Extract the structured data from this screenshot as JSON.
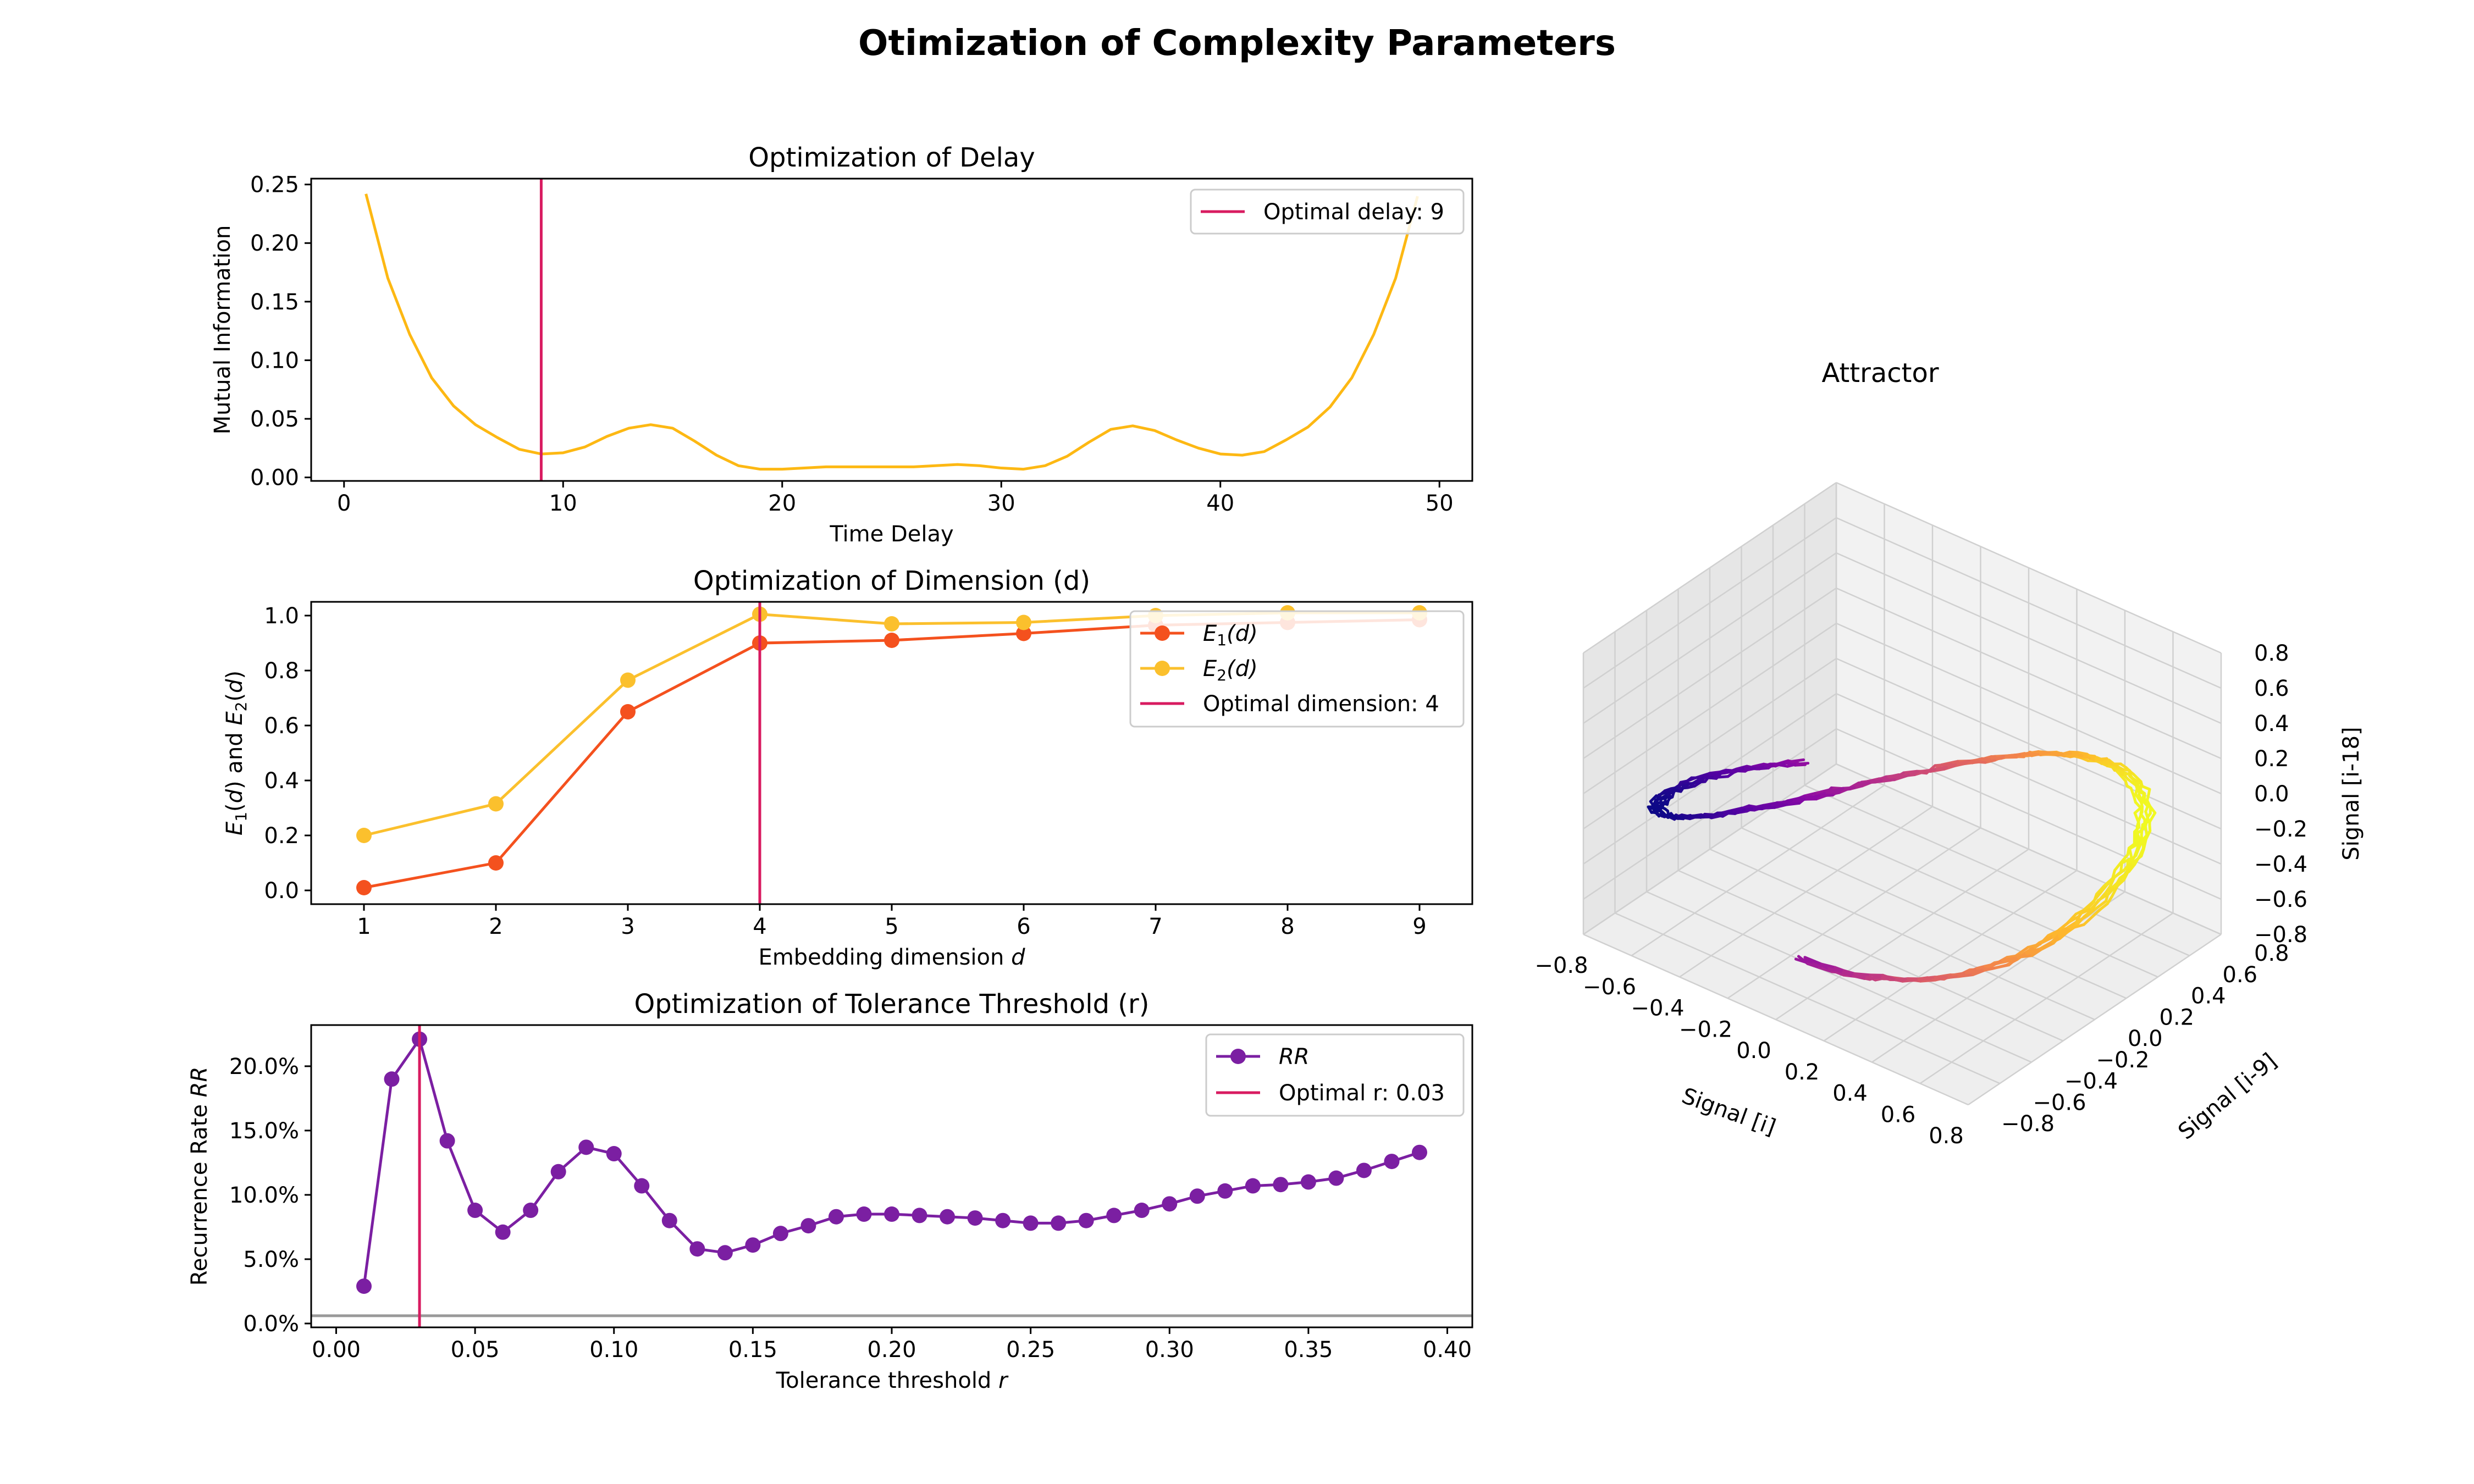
{
  "figure": {
    "title": "Otimization of Complexity Parameters"
  },
  "colors": {
    "delay_line": "#FDB813",
    "optimal_line": "#D81B60",
    "e1": "#F4511E",
    "e2": "#FBC02D",
    "rr": "#7B1FA2"
  },
  "chart_data": [
    {
      "type": "line",
      "title": "Optimization of Delay",
      "xlabel": "Time Delay",
      "ylabel": "Mutual Information",
      "xlim": [
        -1.5,
        51.5
      ],
      "ylim": [
        -0.003,
        0.255
      ],
      "xticks": [
        0,
        10,
        20,
        30,
        40,
        50
      ],
      "xtick_labels": [
        "0",
        "10",
        "20",
        "30",
        "40",
        "50"
      ],
      "yticks": [
        0.0,
        0.05,
        0.1,
        0.15,
        0.2,
        0.25
      ],
      "ytick_labels": [
        "0.00",
        "0.05",
        "0.10",
        "0.15",
        "0.20",
        "0.25"
      ],
      "series": [
        {
          "x": [
            1,
            2,
            3,
            4,
            5,
            6,
            7,
            8,
            9,
            10,
            11,
            12,
            13,
            14,
            15,
            16,
            17,
            18,
            19,
            20,
            21,
            22,
            23,
            24,
            25,
            26,
            27,
            28,
            29,
            30,
            31,
            32,
            33,
            34,
            35,
            36,
            37,
            38,
            39,
            40,
            41,
            42,
            43,
            44,
            45,
            46,
            47,
            48,
            49
          ],
          "values": [
            0.242,
            0.17,
            0.122,
            0.085,
            0.061,
            0.045,
            0.034,
            0.024,
            0.02,
            0.021,
            0.026,
            0.035,
            0.042,
            0.045,
            0.042,
            0.031,
            0.019,
            0.01,
            0.007,
            0.007,
            0.008,
            0.009,
            0.009,
            0.009,
            0.009,
            0.009,
            0.01,
            0.011,
            0.01,
            0.008,
            0.007,
            0.01,
            0.018,
            0.03,
            0.041,
            0.044,
            0.04,
            0.032,
            0.025,
            0.02,
            0.019,
            0.022,
            0.032,
            0.043,
            0.06,
            0.085,
            0.122,
            0.17,
            0.24
          ]
        }
      ],
      "optimal": {
        "x": 9,
        "legend": "Optimal delay: 9"
      }
    },
    {
      "type": "line",
      "title": "Optimization of Dimension (d)",
      "xlabel_prefix": "Embedding dimension ",
      "xlabel_var": "d",
      "ylabel": "E1(d) and E2(d)",
      "xlim": [
        0.6,
        9.4
      ],
      "ylim": [
        -0.05,
        1.05
      ],
      "xticks": [
        1,
        2,
        3,
        4,
        5,
        6,
        7,
        8,
        9
      ],
      "xtick_labels": [
        "1",
        "2",
        "3",
        "4",
        "5",
        "6",
        "7",
        "8",
        "9"
      ],
      "yticks": [
        0.0,
        0.2,
        0.4,
        0.6,
        0.8,
        1.0
      ],
      "ytick_labels": [
        "0.0",
        "0.2",
        "0.4",
        "0.6",
        "0.8",
        "1.0"
      ],
      "categories": [
        1,
        2,
        3,
        4,
        5,
        6,
        7,
        8,
        9
      ],
      "series": [
        {
          "name": "E1(d)",
          "values": [
            0.01,
            0.1,
            0.65,
            0.9,
            0.91,
            0.935,
            0.965,
            0.975,
            0.985
          ]
        },
        {
          "name": "E2(d)",
          "values": [
            0.2,
            0.315,
            0.765,
            1.005,
            0.97,
            0.975,
            1.0,
            1.01,
            1.01
          ]
        }
      ],
      "legend_names": [
        {
          "main": "E",
          "sub": "1",
          "tail": "(d)"
        },
        {
          "main": "E",
          "sub": "2",
          "tail": "(d)"
        }
      ],
      "optimal": {
        "x": 4,
        "legend": "Optimal dimension: 4"
      }
    },
    {
      "type": "line",
      "title": "Optimization of Tolerance Threshold (r)",
      "xlabel_prefix": "Tolerance threshold ",
      "xlabel_var": "r",
      "ylabel_prefix": "Recurrence Rate ",
      "ylabel_var": "RR",
      "xlim": [
        -0.009,
        0.409
      ],
      "ylim": [
        -0.003,
        0.232
      ],
      "xticks": [
        0.0,
        0.05,
        0.1,
        0.15,
        0.2,
        0.25,
        0.3,
        0.35,
        0.4
      ],
      "xtick_labels": [
        "0.00",
        "0.05",
        "0.10",
        "0.15",
        "0.20",
        "0.25",
        "0.30",
        "0.35",
        "0.40"
      ],
      "yticks": [
        0.0,
        0.05,
        0.1,
        0.15,
        0.2
      ],
      "ytick_labels": [
        "0.0%",
        "5.0%",
        "10.0%",
        "15.0%",
        "20.0%"
      ],
      "series": [
        {
          "name": "RR",
          "x": [
            0.01,
            0.02,
            0.03,
            0.04,
            0.05,
            0.06,
            0.07,
            0.08,
            0.09,
            0.1,
            0.11,
            0.12,
            0.13,
            0.14,
            0.15,
            0.16,
            0.17,
            0.18,
            0.19,
            0.2,
            0.21,
            0.22,
            0.23,
            0.24,
            0.25,
            0.26,
            0.27,
            0.28,
            0.29,
            0.3,
            0.31,
            0.32,
            0.33,
            0.34,
            0.35,
            0.36,
            0.37,
            0.38,
            0.39
          ],
          "values": [
            0.029,
            0.19,
            0.221,
            0.142,
            0.088,
            0.071,
            0.088,
            0.118,
            0.137,
            0.132,
            0.107,
            0.08,
            0.058,
            0.055,
            0.061,
            0.07,
            0.076,
            0.083,
            0.085,
            0.085,
            0.084,
            0.083,
            0.082,
            0.08,
            0.078,
            0.078,
            0.08,
            0.084,
            0.088,
            0.093,
            0.099,
            0.103,
            0.107,
            0.108,
            0.11,
            0.113,
            0.119,
            0.126,
            0.133
          ]
        }
      ],
      "baseline": 0.006,
      "optimal": {
        "x": 0.03,
        "legend": "Optimal r: 0.03"
      }
    },
    {
      "type": "line3d",
      "title": "Attractor",
      "xlabel": "Signal [i]",
      "ylabel": "Signal [i-9]",
      "zlabel": "Signal [i-18]",
      "lim": [
        -0.8,
        0.8
      ],
      "ticks": [
        -0.8,
        -0.6,
        -0.4,
        -0.2,
        0.0,
        0.2,
        0.4,
        0.6,
        0.8
      ],
      "tick_labels": [
        "−0.8",
        "−0.6",
        "−0.4",
        "−0.2",
        "0.0",
        "0.2",
        "0.4",
        "0.6",
        "0.8"
      ],
      "colormap": "plasma",
      "n_loops": 6,
      "points_per_loop": 120
    }
  ]
}
